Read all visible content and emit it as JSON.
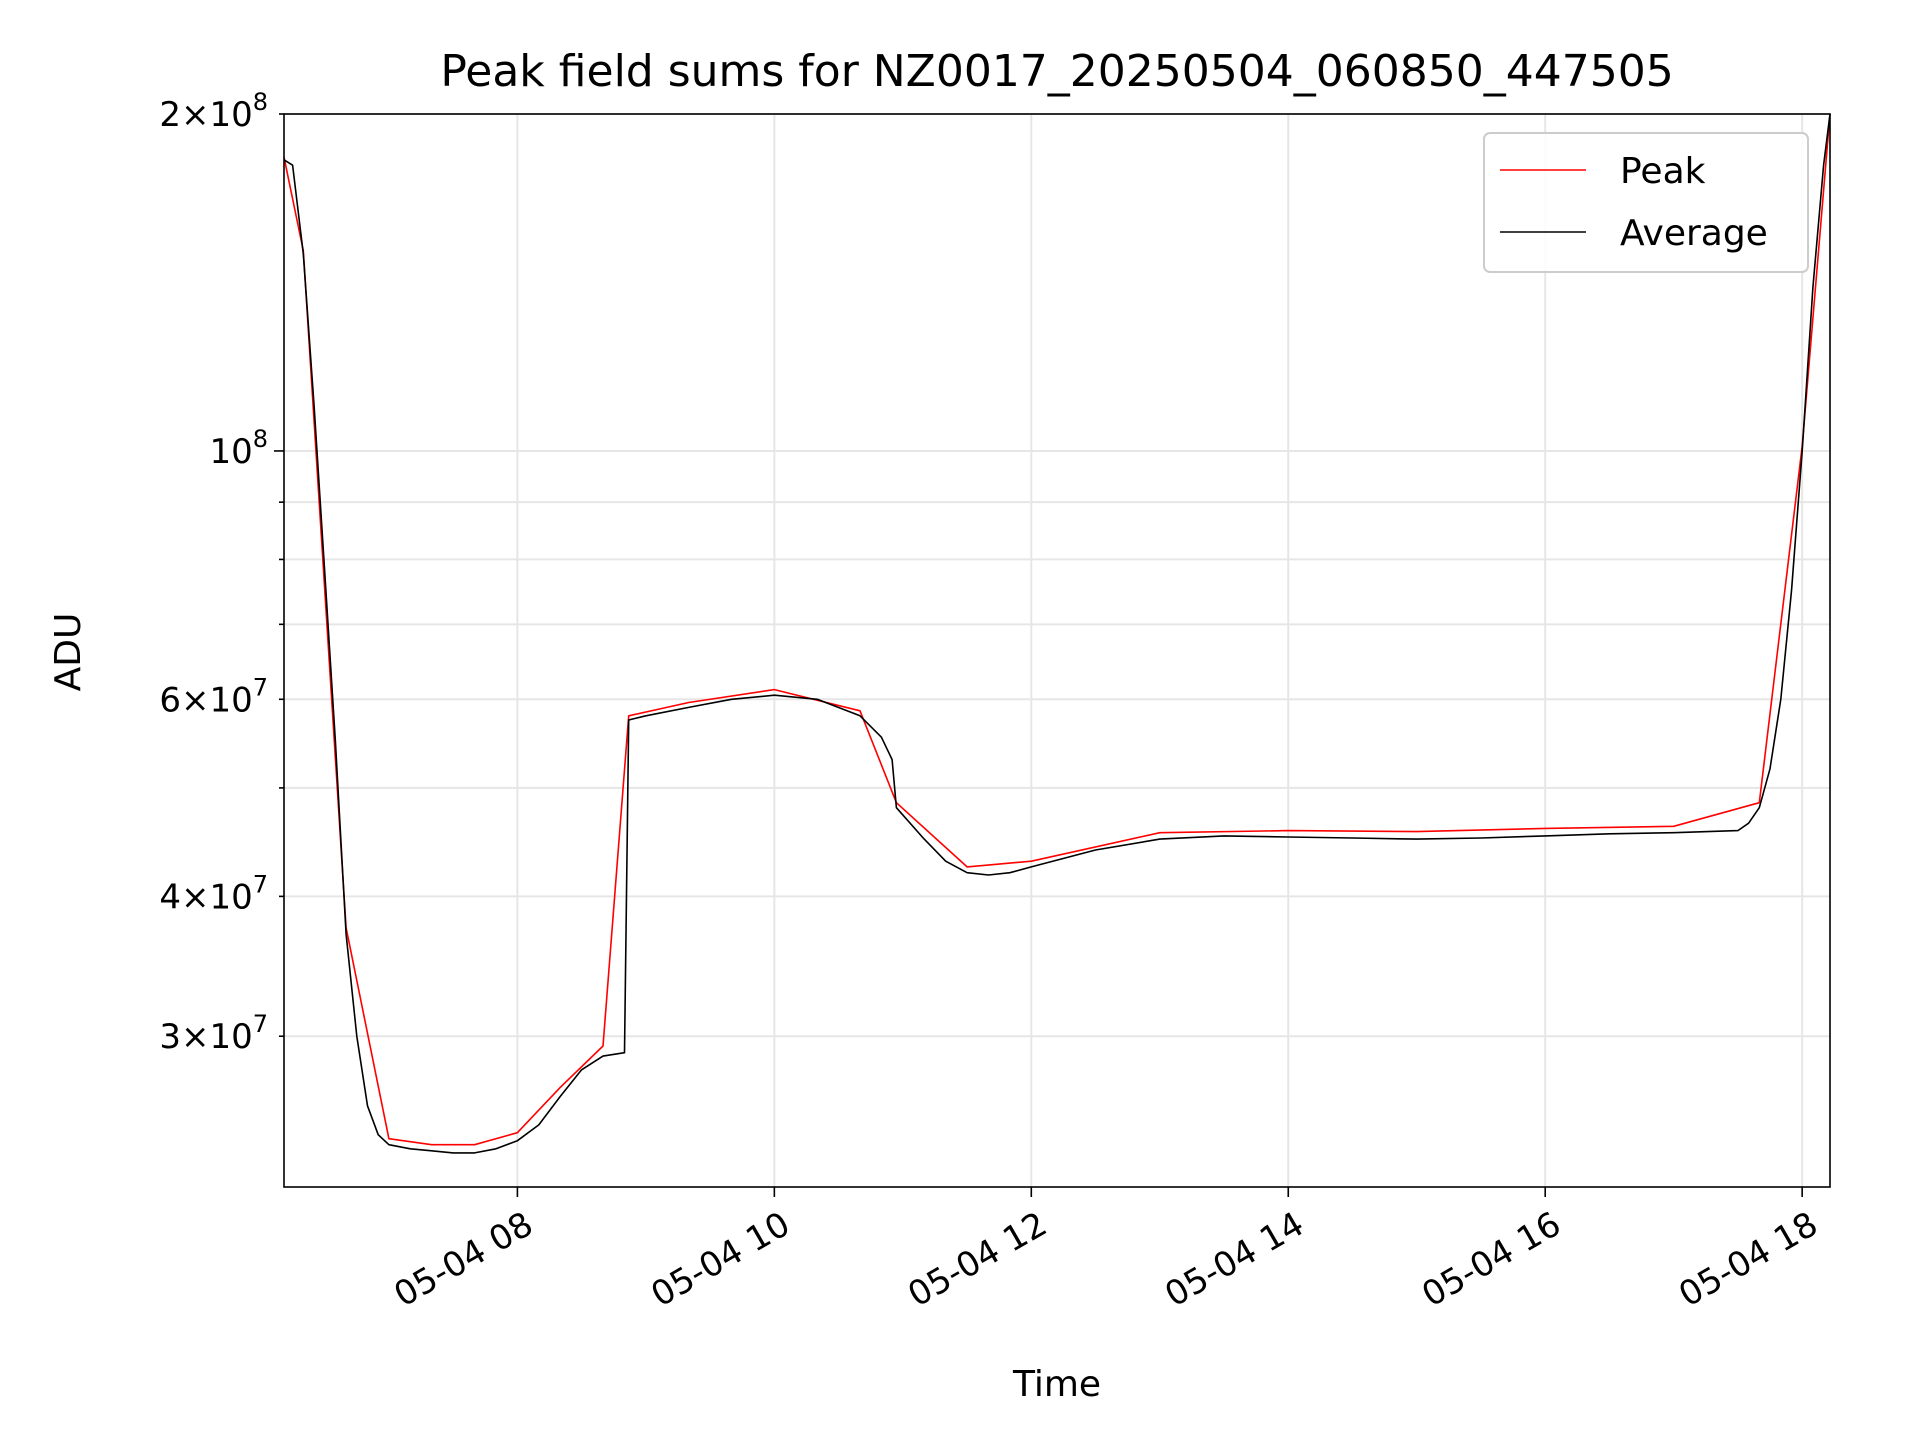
{
  "chart_data": {
    "type": "line",
    "title": "Peak field sums for NZ0017_20250504_060850_447505",
    "xlabel": "Time",
    "ylabel": "ADU",
    "yscale": "log",
    "ylim": [
      22000000,
      200000000
    ],
    "xlim": [
      "2025-05-04 06:11",
      "2025-05-04 18:13"
    ],
    "x_ticks": [
      "05-04 08",
      "05-04 10",
      "05-04 12",
      "05-04 14",
      "05-04 16",
      "05-04 18"
    ],
    "y_ticks_major": [
      {
        "value": 100000000,
        "base": "10",
        "exp": "8",
        "coef": ""
      },
      {
        "value": 200000000,
        "base": "10",
        "exp": "8",
        "coef": "2"
      }
    ],
    "y_ticks_minor_labeled": [
      {
        "value": 30000000,
        "base": "10",
        "exp": "7",
        "coef": "3"
      },
      {
        "value": 40000000,
        "base": "10",
        "exp": "7",
        "coef": "4"
      },
      {
        "value": 60000000,
        "base": "10",
        "exp": "7",
        "coef": "6"
      }
    ],
    "grid": true,
    "legend": {
      "placement": "top-right",
      "entries": [
        "Peak",
        "Average"
      ]
    },
    "series": [
      {
        "name": "Average",
        "color": "#000000",
        "x": [
          "2025-05-04 06:11",
          "2025-05-04 06:15",
          "2025-05-04 06:20",
          "2025-05-04 06:25",
          "2025-05-04 06:30",
          "2025-05-04 06:35",
          "2025-05-04 06:40",
          "2025-05-04 06:45",
          "2025-05-04 06:50",
          "2025-05-04 06:55",
          "2025-05-04 07:00",
          "2025-05-04 07:10",
          "2025-05-04 07:20",
          "2025-05-04 07:30",
          "2025-05-04 07:40",
          "2025-05-04 07:50",
          "2025-05-04 08:00",
          "2025-05-04 08:10",
          "2025-05-04 08:20",
          "2025-05-04 08:30",
          "2025-05-04 08:40",
          "2025-05-04 08:50",
          "2025-05-04 08:52",
          "2025-05-04 09:00",
          "2025-05-04 09:20",
          "2025-05-04 09:40",
          "2025-05-04 10:00",
          "2025-05-04 10:20",
          "2025-05-04 10:40",
          "2025-05-04 10:50",
          "2025-05-04 10:55",
          "2025-05-04 10:57",
          "2025-05-04 11:10",
          "2025-05-04 11:20",
          "2025-05-04 11:30",
          "2025-05-04 11:40",
          "2025-05-04 11:50",
          "2025-05-04 12:00",
          "2025-05-04 12:30",
          "2025-05-04 13:00",
          "2025-05-04 13:30",
          "2025-05-04 14:00",
          "2025-05-04 14:30",
          "2025-05-04 15:00",
          "2025-05-04 15:30",
          "2025-05-04 16:00",
          "2025-05-04 16:30",
          "2025-05-04 17:00",
          "2025-05-04 17:30",
          "2025-05-04 17:35",
          "2025-05-04 17:40",
          "2025-05-04 17:45",
          "2025-05-04 17:50",
          "2025-05-04 17:55",
          "2025-05-04 18:00",
          "2025-05-04 18:05",
          "2025-05-04 18:10",
          "2025-05-04 18:13"
        ],
        "y": [
          182000000,
          180000000,
          150000000,
          110000000,
          78000000,
          55000000,
          37000000,
          30000000,
          26000000,
          24500000,
          24000000,
          23800000,
          23700000,
          23600000,
          23600000,
          23800000,
          24200000,
          25000000,
          26500000,
          28000000,
          28800000,
          29000000,
          57500000,
          58000000,
          59000000,
          60000000,
          60500000,
          60000000,
          58000000,
          55500000,
          53000000,
          48000000,
          45000000,
          43000000,
          42000000,
          41800000,
          42000000,
          42500000,
          44000000,
          45000000,
          45300000,
          45200000,
          45100000,
          45000000,
          45100000,
          45300000,
          45500000,
          45600000,
          45800000,
          46500000,
          48000000,
          52000000,
          60000000,
          75000000,
          100000000,
          140000000,
          180000000,
          200000000
        ]
      },
      {
        "name": "Peak",
        "color": "#ff0000",
        "x": [
          "2025-05-04 06:11",
          "2025-05-04 06:20",
          "2025-05-04 06:40",
          "2025-05-04 07:00",
          "2025-05-04 07:20",
          "2025-05-04 07:40",
          "2025-05-04 08:00",
          "2025-05-04 08:20",
          "2025-05-04 08:40",
          "2025-05-04 08:52",
          "2025-05-04 09:20",
          "2025-05-04 10:00",
          "2025-05-04 10:40",
          "2025-05-04 10:57",
          "2025-05-04 11:30",
          "2025-05-04 12:00",
          "2025-05-04 13:00",
          "2025-05-04 14:00",
          "2025-05-04 15:00",
          "2025-05-04 16:00",
          "2025-05-04 17:00",
          "2025-05-04 17:40",
          "2025-05-04 18:00",
          "2025-05-04 18:13"
        ],
        "y": [
          183000000,
          151000000,
          37500000,
          24300000,
          24000000,
          24000000,
          24600000,
          27000000,
          29400000,
          58000000,
          59600000,
          61200000,
          58600000,
          48500000,
          42500000,
          43000000,
          45600000,
          45800000,
          45700000,
          46000000,
          46200000,
          48500000,
          101000000,
          200000000
        ]
      }
    ]
  }
}
